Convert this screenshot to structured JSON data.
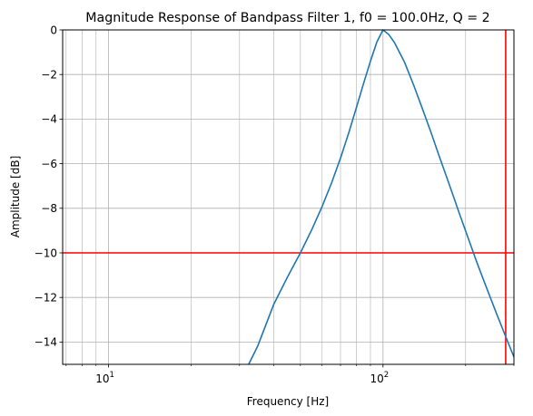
{
  "chart_data": {
    "type": "line",
    "title": "Magnitude Response of Bandpass Filter 1, f0 = 100.0Hz, Q = 2",
    "xlabel": "Frequency [Hz]",
    "ylabel": "Amplitude [dB]",
    "x_scale": "log",
    "xlim": [
      6.8,
      300
    ],
    "ylim": [
      -15,
      0
    ],
    "grid": true,
    "x_major_ticks": [
      {
        "value": 10,
        "base": "10",
        "exp": "1"
      },
      {
        "value": 100,
        "base": "10",
        "exp": "2"
      }
    ],
    "y_ticks": [
      {
        "value": 0,
        "label": "0"
      },
      {
        "value": -2,
        "label": "−2"
      },
      {
        "value": -4,
        "label": "−4"
      },
      {
        "value": -6,
        "label": "−6"
      },
      {
        "value": -8,
        "label": "−8"
      },
      {
        "value": -10,
        "label": "−10"
      },
      {
        "value": -12,
        "label": "−12"
      },
      {
        "value": -14,
        "label": "−14"
      }
    ],
    "series": [
      {
        "color": "#1f77b4",
        "x": [
          32.4,
          35,
          40,
          45,
          50,
          55,
          60,
          65,
          70,
          75,
          80,
          85,
          90,
          95,
          100,
          105,
          110,
          120,
          130,
          140,
          150,
          160,
          170,
          180,
          190,
          200,
          220,
          240,
          260,
          280,
          300
        ],
        "y": [
          -15.0,
          -14.16,
          -12.3,
          -11.05,
          -10.0,
          -8.96,
          -7.92,
          -6.85,
          -5.75,
          -4.62,
          -3.48,
          -2.39,
          -1.4,
          -0.54,
          0.0,
          -0.21,
          -0.56,
          -1.47,
          -2.55,
          -3.62,
          -4.64,
          -5.64,
          -6.55,
          -7.42,
          -8.25,
          -9.02,
          -10.44,
          -11.66,
          -12.76,
          -13.76,
          -14.67
        ]
      }
    ],
    "reference_lines": [
      {
        "orientation": "horizontal",
        "value": -10,
        "color": "#ff0000"
      },
      {
        "orientation": "vertical",
        "value": 280,
        "color": "#ff0000"
      }
    ]
  }
}
